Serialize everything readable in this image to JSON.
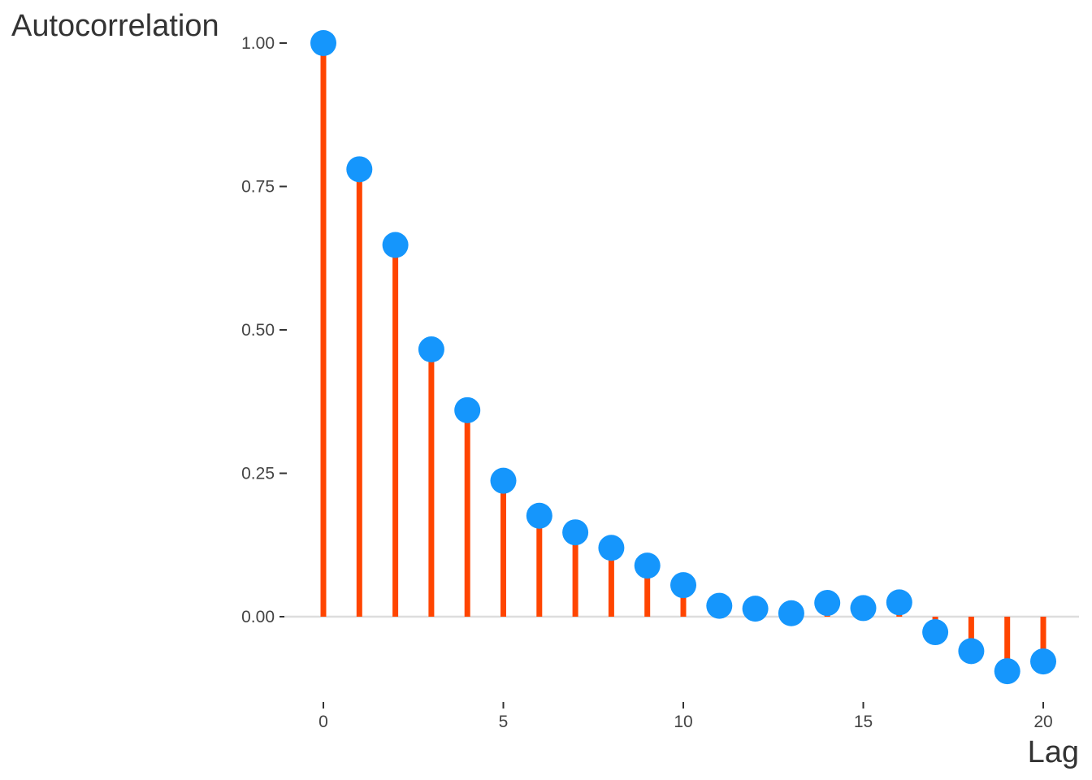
{
  "chart_data": {
    "type": "lollipop",
    "xlabel": "Lag",
    "ylabel": "Autocorrelation",
    "x": [
      0,
      1,
      2,
      3,
      4,
      5,
      6,
      7,
      8,
      9,
      10,
      11,
      12,
      13,
      14,
      15,
      16,
      17,
      18,
      19,
      20
    ],
    "values": [
      1.0,
      0.78,
      0.648,
      0.466,
      0.36,
      0.237,
      0.176,
      0.147,
      0.12,
      0.089,
      0.055,
      0.019,
      0.014,
      0.006,
      0.024,
      0.015,
      0.025,
      -0.027,
      -0.06,
      -0.095,
      -0.078
    ],
    "xticks": [
      0,
      5,
      10,
      15,
      20
    ],
    "xtick_labels": [
      "0",
      "5",
      "10",
      "15",
      "20"
    ],
    "yticks": [
      0.0,
      0.25,
      0.5,
      0.75,
      1.0
    ],
    "ytick_labels": [
      "0.00",
      "0.25",
      "0.50",
      "0.75",
      "1.00"
    ],
    "xlim": [
      0,
      20
    ],
    "ylim": [
      0,
      1
    ],
    "grid": false,
    "colors": {
      "stem": "#ff4500",
      "point": "#1596fc",
      "zero_line": "#dddddd",
      "text": "#333333"
    }
  }
}
